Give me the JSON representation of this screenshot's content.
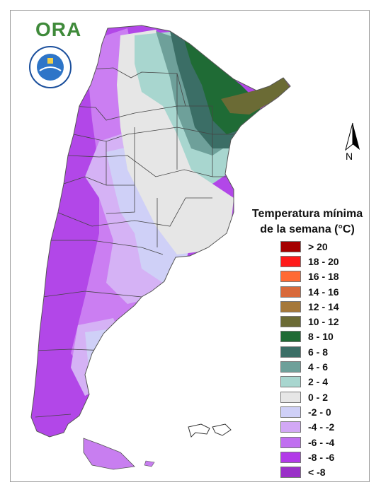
{
  "logo": {
    "text": "ORA"
  },
  "north_arrow": {
    "label": "N"
  },
  "legend": {
    "title_line1": "Temperatura mínima",
    "title_line2": "de la semana (°C)",
    "items": [
      {
        "label": "> 20",
        "color": "#a50000"
      },
      {
        "label": "18 - 20",
        "color": "#ff1a1a"
      },
      {
        "label": "16 - 18",
        "color": "#ff6a33"
      },
      {
        "label": "14 - 16",
        "color": "#d8693a"
      },
      {
        "label": "12 - 14",
        "color": "#a5783a"
      },
      {
        "label": "10 - 12",
        "color": "#6b6b35"
      },
      {
        "label": "8 - 10",
        "color": "#1f6b35"
      },
      {
        "label": "6 - 8",
        "color": "#3b6e66"
      },
      {
        "label": "4 - 6",
        "color": "#6ea09a"
      },
      {
        "label": "2 - 4",
        "color": "#a8d6cf"
      },
      {
        "label": "0 - 2",
        "color": "#e6e6e6"
      },
      {
        "label": "-2 - 0",
        "color": "#cfd0f7"
      },
      {
        "label": "-4 - -2",
        "color": "#d2a8f5"
      },
      {
        "label": "-6 - -4",
        "color": "#c06ef0"
      },
      {
        "label": "-8 - -6",
        "color": "#b23ae8"
      },
      {
        "label": "< -8",
        "color": "#9a30c8"
      }
    ]
  }
}
